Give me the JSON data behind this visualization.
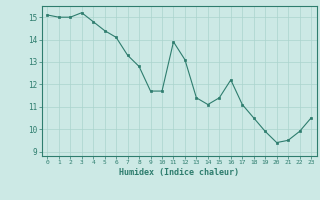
{
  "x": [
    0,
    1,
    2,
    3,
    4,
    5,
    6,
    7,
    8,
    9,
    10,
    11,
    12,
    13,
    14,
    15,
    16,
    17,
    18,
    19,
    20,
    21,
    22,
    23
  ],
  "y": [
    15.1,
    15.0,
    15.0,
    15.2,
    14.8,
    14.4,
    14.1,
    13.3,
    12.8,
    11.7,
    11.7,
    13.9,
    13.1,
    11.4,
    11.1,
    11.4,
    12.2,
    11.1,
    10.5,
    9.9,
    9.4,
    9.5,
    9.9,
    10.5
  ],
  "xlabel": "Humidex (Indice chaleur)",
  "ylabel": "",
  "xlim": [
    -0.5,
    23.5
  ],
  "ylim": [
    8.8,
    15.5
  ],
  "yticks": [
    9,
    10,
    11,
    12,
    13,
    14,
    15
  ],
  "xticks": [
    0,
    1,
    2,
    3,
    4,
    5,
    6,
    7,
    8,
    9,
    10,
    11,
    12,
    13,
    14,
    15,
    16,
    17,
    18,
    19,
    20,
    21,
    22,
    23
  ],
  "line_color": "#2e7d6e",
  "marker_color": "#2e7d6e",
  "bg_color": "#cce9e5",
  "grid_color": "#aad4ce",
  "label_color": "#2e7d6e",
  "tick_color": "#2e7d6e",
  "spine_color": "#2e7d6e"
}
